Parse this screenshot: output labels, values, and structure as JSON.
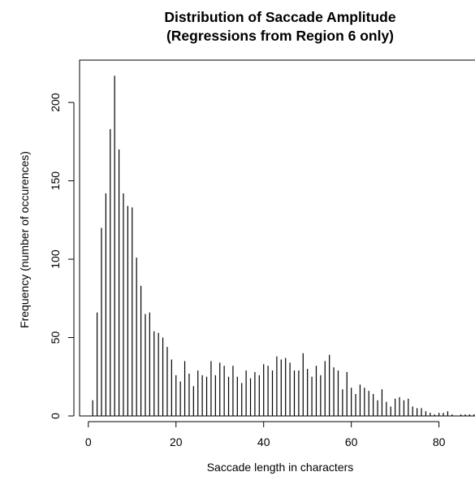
{
  "chart_data": {
    "type": "bar",
    "style": "histogram-spikes",
    "title": "Distribution of Saccade Amplitude",
    "subtitle": "(Regressions from Region 6 only)",
    "xlabel": "Saccade length in characters",
    "ylabel": "Frequency (number of occurences)",
    "xlim": [
      -2,
      91
    ],
    "ylim": [
      0,
      227
    ],
    "xticks": [
      0,
      20,
      40,
      60,
      80
    ],
    "yticks": [
      0,
      50,
      100,
      150,
      200
    ],
    "grid": false,
    "x": [
      1,
      2,
      3,
      4,
      5,
      6,
      7,
      8,
      9,
      10,
      11,
      12,
      13,
      14,
      15,
      16,
      17,
      18,
      19,
      20,
      21,
      22,
      23,
      24,
      25,
      26,
      27,
      28,
      29,
      30,
      31,
      32,
      33,
      34,
      35,
      36,
      37,
      38,
      39,
      40,
      41,
      42,
      43,
      44,
      45,
      46,
      47,
      48,
      49,
      50,
      51,
      52,
      53,
      54,
      55,
      56,
      57,
      58,
      59,
      60,
      61,
      62,
      63,
      64,
      65,
      66,
      67,
      68,
      69,
      70,
      71,
      72,
      73,
      74,
      75,
      76,
      77,
      78,
      79,
      80,
      81,
      82,
      83,
      84,
      85,
      86,
      87,
      88
    ],
    "values": [
      10,
      66,
      120,
      142,
      183,
      217,
      170,
      142,
      134,
      133,
      101,
      83,
      65,
      66,
      54,
      53,
      50,
      44,
      36,
      26,
      22,
      35,
      27,
      19,
      29,
      26,
      25,
      35,
      26,
      34,
      32,
      25,
      32,
      25,
      21,
      29,
      24,
      28,
      26,
      33,
      32,
      29,
      38,
      36,
      37,
      34,
      29,
      29,
      40,
      30,
      25,
      32,
      26,
      35,
      39,
      31,
      29,
      17,
      28,
      18,
      14,
      20,
      18,
      16,
      14,
      10,
      17,
      9,
      6,
      11,
      12,
      10,
      11,
      6,
      5,
      5,
      3,
      2,
      1,
      2,
      2,
      3,
      1,
      0,
      1,
      1,
      1,
      1
    ]
  }
}
